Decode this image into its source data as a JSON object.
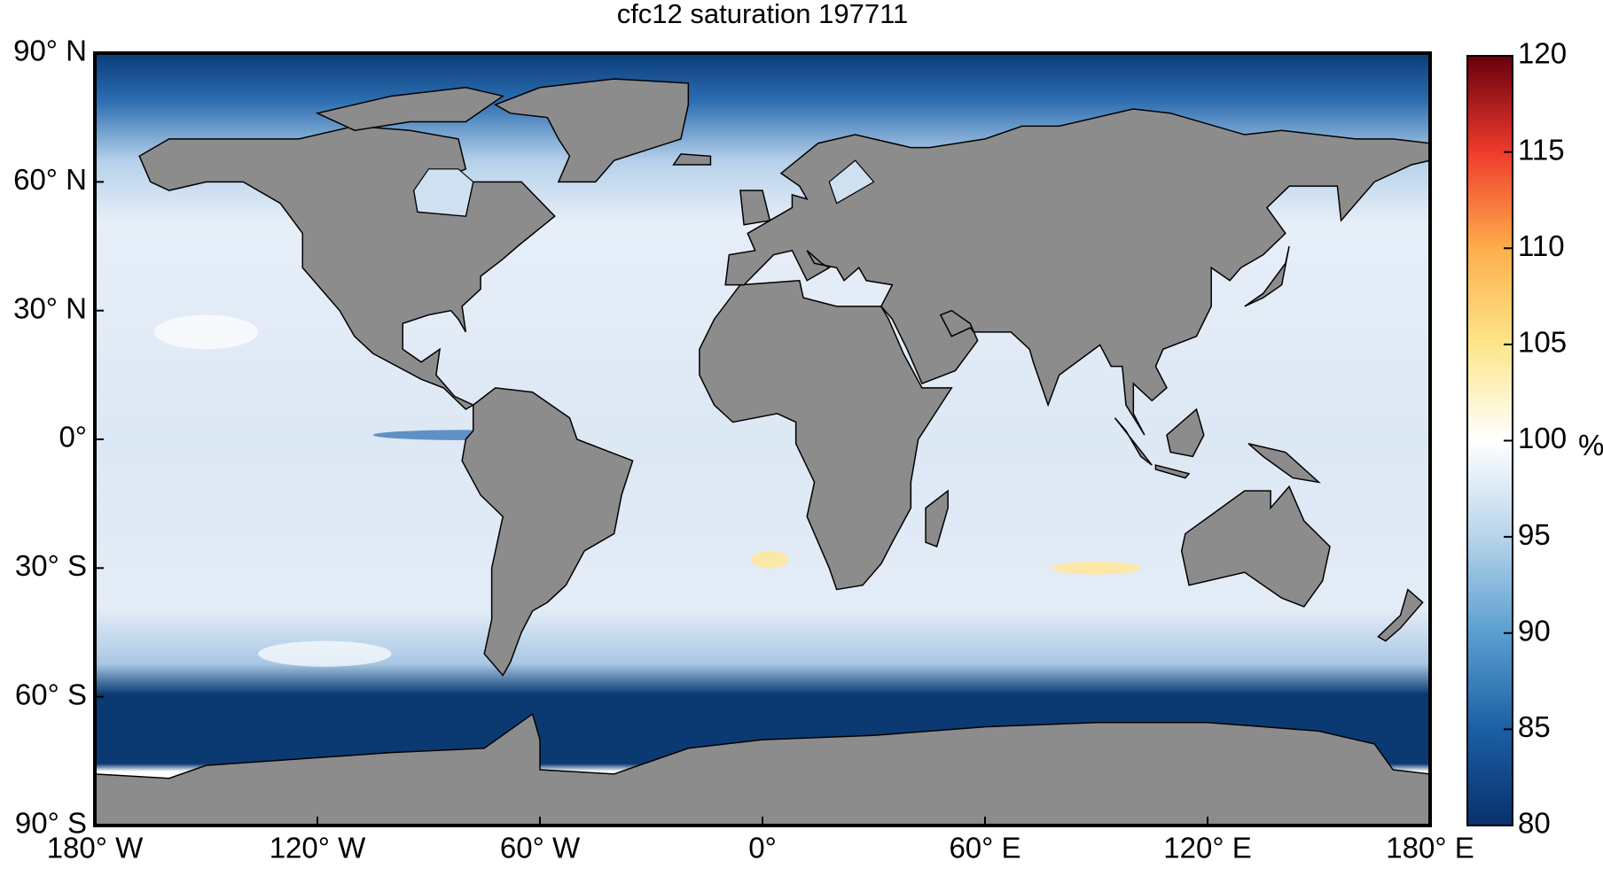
{
  "title": "cfc12 saturation 197711",
  "map": {
    "xlim": [
      -180,
      180
    ],
    "ylim": [
      -90,
      90
    ],
    "xticks": [
      {
        "value": -180,
        "label": "180° W"
      },
      {
        "value": -120,
        "label": "120° W"
      },
      {
        "value": -60,
        "label": "60° W"
      },
      {
        "value": 0,
        "label": "0°"
      },
      {
        "value": 60,
        "label": "60° E"
      },
      {
        "value": 120,
        "label": "120° E"
      },
      {
        "value": 180,
        "label": "180° E"
      }
    ],
    "yticks": [
      {
        "value": 90,
        "label": "90° N"
      },
      {
        "value": 60,
        "label": "60° N"
      },
      {
        "value": 30,
        "label": "30° N"
      },
      {
        "value": 0,
        "label": "0°"
      },
      {
        "value": -30,
        "label": "30° S"
      },
      {
        "value": -60,
        "label": "60° S"
      },
      {
        "value": -90,
        "label": "90° S"
      }
    ]
  },
  "colorbar": {
    "lim": [
      80,
      120
    ],
    "ticks": [
      80,
      85,
      90,
      95,
      100,
      105,
      110,
      115,
      120
    ],
    "unit": "%",
    "colors": [
      "#08306b",
      "#1c5fa5",
      "#5a9fd0",
      "#b7d4ea",
      "#ffffff",
      "#fde68a",
      "#fdae4b",
      "#ef3b2c",
      "#67000d"
    ]
  }
}
